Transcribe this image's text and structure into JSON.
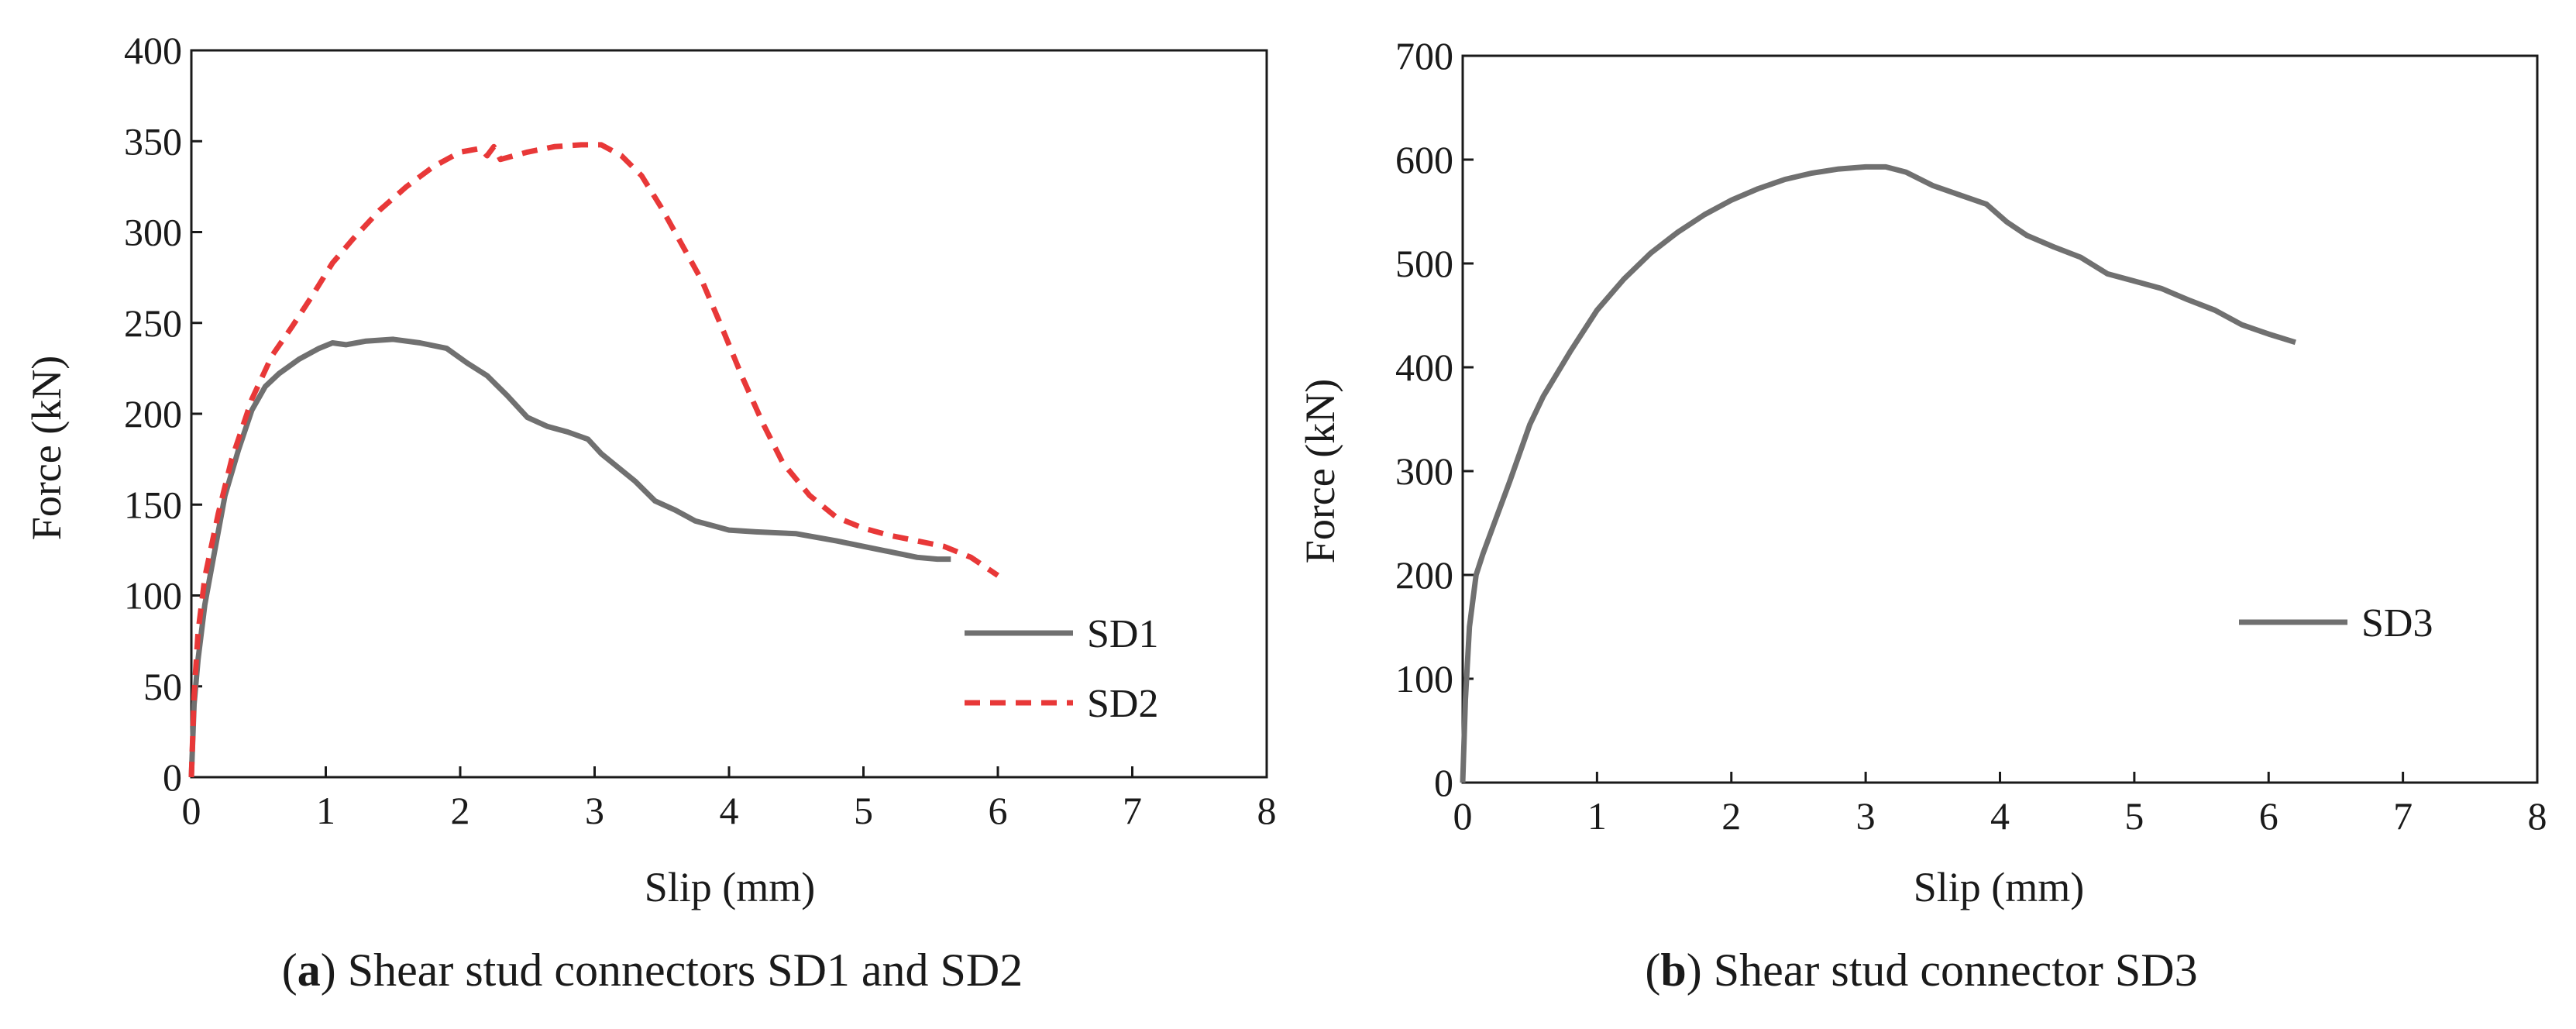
{
  "chart_data": [
    {
      "id": "a",
      "type": "line",
      "caption_letter": "a",
      "caption_open": "(",
      "caption_close": ")",
      "caption_text": " Shear stud connectors SD1 and SD2",
      "title": "",
      "xlabel": "Slip (mm)",
      "ylabel": "Force (kN)",
      "xlim": [
        0,
        8
      ],
      "ylim": [
        0,
        400
      ],
      "xticks": [
        0,
        1,
        2,
        3,
        4,
        5,
        6,
        7,
        8
      ],
      "yticks": [
        0,
        50,
        100,
        150,
        200,
        250,
        300,
        350,
        400
      ],
      "grid": false,
      "legend_position": "right",
      "series": [
        {
          "name": "SD1",
          "color": "#707070",
          "dash": "solid",
          "x": [
            0,
            0.02,
            0.05,
            0.1,
            0.15,
            0.25,
            0.35,
            0.45,
            0.55,
            0.65,
            0.8,
            0.95,
            1.05,
            1.15,
            1.3,
            1.5,
            1.7,
            1.9,
            2.05,
            2.2,
            2.35,
            2.5,
            2.65,
            2.8,
            2.95,
            3.05,
            3.15,
            3.3,
            3.45,
            3.6,
            3.75,
            3.9,
            4.0,
            4.2,
            4.5,
            4.8,
            5.0,
            5.2,
            5.4,
            5.55,
            5.65
          ],
          "y": [
            0,
            40,
            65,
            95,
            115,
            155,
            180,
            202,
            215,
            222,
            230,
            236,
            239,
            238,
            240,
            241,
            239,
            236,
            228,
            221,
            210,
            198,
            193,
            190,
            186,
            178,
            172,
            163,
            152,
            147,
            141,
            138,
            136,
            135,
            134,
            130,
            127,
            124,
            121,
            120,
            120
          ]
        },
        {
          "name": "SD2",
          "color": "#e83838",
          "dash": "dashed",
          "x": [
            0,
            0.02,
            0.05,
            0.1,
            0.2,
            0.3,
            0.45,
            0.6,
            0.75,
            0.9,
            1.05,
            1.2,
            1.4,
            1.6,
            1.8,
            2.0,
            2.15,
            2.2,
            2.25,
            2.3,
            2.5,
            2.7,
            2.9,
            3.05,
            3.2,
            3.35,
            3.5,
            3.65,
            3.8,
            3.95,
            4.1,
            4.25,
            4.4,
            4.6,
            4.8,
            5.0,
            5.2,
            5.4,
            5.6,
            5.8,
            6.0
          ],
          "y": [
            0,
            45,
            80,
            110,
            145,
            175,
            208,
            232,
            248,
            265,
            283,
            296,
            312,
            325,
            336,
            344,
            346,
            342,
            347,
            340,
            344,
            347,
            348,
            348,
            342,
            331,
            313,
            293,
            273,
            247,
            220,
            195,
            173,
            155,
            143,
            137,
            133,
            130,
            127,
            121,
            111
          ]
        }
      ]
    },
    {
      "id": "b",
      "type": "line",
      "caption_letter": "b",
      "caption_open": "(",
      "caption_close": ")",
      "caption_text": " Shear stud connector SD3",
      "title": "",
      "xlabel": "Slip (mm)",
      "ylabel": "Force (kN)",
      "xlim": [
        0,
        8
      ],
      "ylim": [
        0,
        700
      ],
      "xticks": [
        0,
        1,
        2,
        3,
        4,
        5,
        6,
        7,
        8
      ],
      "yticks": [
        0,
        100,
        200,
        300,
        400,
        500,
        600,
        700
      ],
      "grid": false,
      "legend_position": "right",
      "series": [
        {
          "name": "SD3",
          "color": "#707070",
          "dash": "solid",
          "x": [
            0,
            0.02,
            0.05,
            0.1,
            0.15,
            0.25,
            0.35,
            0.5,
            0.6,
            0.8,
            1.0,
            1.2,
            1.4,
            1.6,
            1.8,
            2.0,
            2.2,
            2.4,
            2.6,
            2.8,
            3.0,
            3.15,
            3.3,
            3.5,
            3.7,
            3.9,
            4.05,
            4.2,
            4.4,
            4.6,
            4.8,
            5.0,
            5.2,
            5.4,
            5.6,
            5.8,
            6.0,
            6.2
          ],
          "y": [
            0,
            80,
            150,
            200,
            220,
            255,
            290,
            345,
            372,
            415,
            455,
            485,
            510,
            530,
            547,
            561,
            572,
            581,
            587,
            591,
            593,
            593,
            588,
            575,
            566,
            557,
            540,
            527,
            516,
            506,
            490,
            483,
            476,
            465,
            455,
            441,
            432,
            424
          ]
        }
      ]
    }
  ]
}
